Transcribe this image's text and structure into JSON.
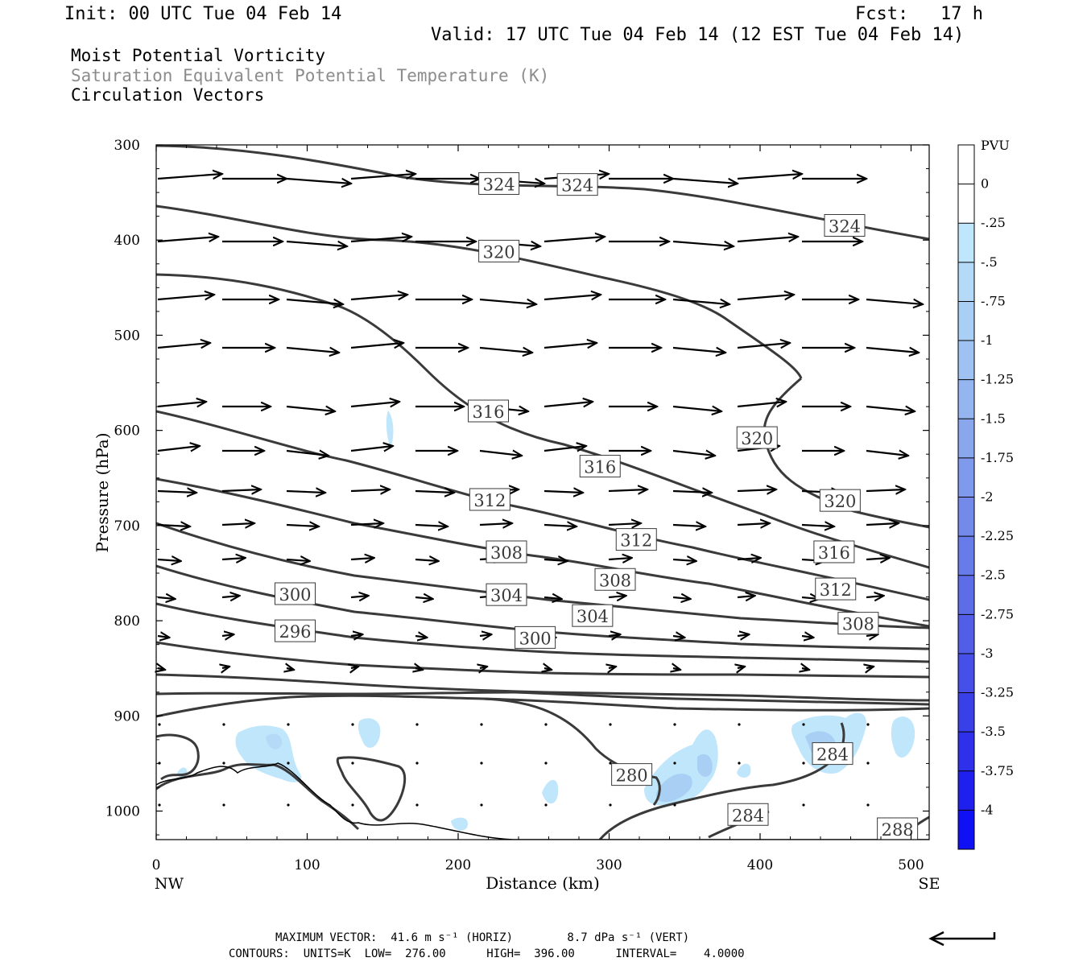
{
  "header": {
    "init": "Init: 00 UTC Tue 04 Feb 14",
    "fcst": "Fcst:   17 h",
    "valid": "Valid: 17 UTC Tue 04 Feb 14 (12 EST Tue 04 Feb 14)"
  },
  "fields": {
    "line1": "Moist Potential Vorticity",
    "line2": "Saturation Equivalent Potential Temperature (K)",
    "line3": "Circulation Vectors",
    "line2_color": "#8c8c8c"
  },
  "footer": {
    "max_vector": "MAXIMUM VECTOR:  41.6 m s⁻¹ (HORIZ)        8.7 dPa s⁻¹ (VERT)",
    "contours": "CONTOURS:  UNITS=K  LOW=  276.00      HIGH=  396.00      INTERVAL=    4.0000"
  },
  "chart_data": {
    "type": "contour",
    "xlabel": "Distance (km)",
    "ylabel": "Pressure (hPa)",
    "xlim": [
      0,
      512
    ],
    "ylim": [
      300,
      1030
    ],
    "y_scale": "linear-inverted",
    "x_ticks": [
      "0",
      "100",
      "200",
      "300",
      "400",
      "500"
    ],
    "y_ticks": [
      "300",
      "400",
      "500",
      "600",
      "700",
      "800",
      "900",
      "1000"
    ],
    "x_end_labels": {
      "left": "NW",
      "right": "SE"
    },
    "contour_color": "#3a3a3a",
    "contour_labels": [
      {
        "text": "324",
        "x": 227,
        "p": 341
      },
      {
        "text": "324",
        "x": 279,
        "p": 342
      },
      {
        "text": "324",
        "x": 456,
        "p": 385
      },
      {
        "text": "320",
        "x": 227,
        "p": 412
      },
      {
        "text": "316",
        "x": 220,
        "p": 580
      },
      {
        "text": "320",
        "x": 398,
        "p": 608
      },
      {
        "text": "316",
        "x": 294,
        "p": 638
      },
      {
        "text": "320",
        "x": 453,
        "p": 674
      },
      {
        "text": "312",
        "x": 221,
        "p": 673
      },
      {
        "text": "312",
        "x": 318,
        "p": 715
      },
      {
        "text": "316",
        "x": 449,
        "p": 728
      },
      {
        "text": "308",
        "x": 232,
        "p": 728
      },
      {
        "text": "308",
        "x": 304,
        "p": 757
      },
      {
        "text": "312",
        "x": 450,
        "p": 767
      },
      {
        "text": "300",
        "x": 92,
        "p": 772
      },
      {
        "text": "304",
        "x": 232,
        "p": 773
      },
      {
        "text": "304",
        "x": 289,
        "p": 795
      },
      {
        "text": "308",
        "x": 465,
        "p": 803
      },
      {
        "text": "296",
        "x": 92,
        "p": 811
      },
      {
        "text": "300",
        "x": 251,
        "p": 818
      },
      {
        "text": "280",
        "x": 315,
        "p": 962
      },
      {
        "text": "284",
        "x": 448,
        "p": 940
      },
      {
        "text": "284",
        "x": 392,
        "p": 1004
      },
      {
        "text": "288",
        "x": 491,
        "p": 1019
      }
    ],
    "colorbar": {
      "title": "PVU",
      "labels": [
        "0",
        "-.25",
        "-.5",
        "-.75",
        "-1",
        "-1.25",
        "-1.5",
        "-1.75",
        "-2",
        "-2.25",
        "-2.5",
        "-2.75",
        "-3",
        "-3.25",
        "-3.5",
        "-3.75",
        "-4"
      ],
      "colors": [
        "#ffffff",
        "#ffffff",
        "#bfe6fb",
        "#b4daf8",
        "#aacff5",
        "#a0c2f3",
        "#95b5f0",
        "#8aa7ee",
        "#7f99ec",
        "#748aea",
        "#687ce9",
        "#5d6de8",
        "#525ee8",
        "#464fe8",
        "#3a40e8",
        "#2e30ea",
        "#2020ee",
        "#1010f4"
      ]
    },
    "max_vector_horiz": 41.6,
    "max_vector_vert": 8.7,
    "contour_low": 276.0,
    "contour_high": 396.0,
    "contour_interval": 4.0
  }
}
